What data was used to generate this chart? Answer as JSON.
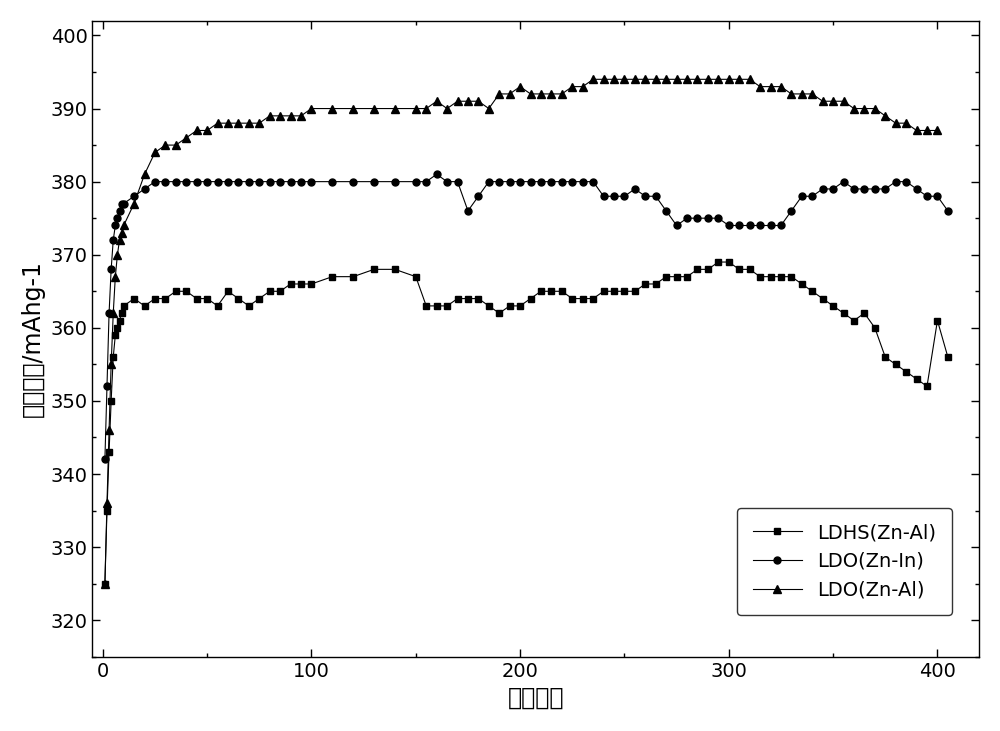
{
  "xlabel": "循环次数",
  "ylabel": "放电容量/mAhg-1",
  "xlim": [
    -5,
    420
  ],
  "ylim": [
    315,
    402
  ],
  "xticks": [
    0,
    100,
    200,
    300,
    400
  ],
  "yticks": [
    320,
    330,
    340,
    350,
    360,
    370,
    380,
    390,
    400
  ],
  "legend_labels": [
    "LDHS(Zn-Al)",
    "LDO(Zn-In)",
    "LDO(Zn-Al)"
  ],
  "series1_x": [
    1,
    2,
    3,
    4,
    5,
    6,
    7,
    8,
    9,
    10,
    15,
    20,
    25,
    30,
    35,
    40,
    45,
    50,
    55,
    60,
    65,
    70,
    75,
    80,
    85,
    90,
    95,
    100,
    110,
    120,
    130,
    140,
    150,
    155,
    160,
    165,
    170,
    175,
    180,
    185,
    190,
    195,
    200,
    205,
    210,
    215,
    220,
    225,
    230,
    235,
    240,
    245,
    250,
    255,
    260,
    265,
    270,
    275,
    280,
    285,
    290,
    295,
    300,
    305,
    310,
    315,
    320,
    325,
    330,
    335,
    340,
    345,
    350,
    355,
    360,
    365,
    370,
    375,
    380,
    385,
    390,
    395,
    400,
    405
  ],
  "series1_y": [
    325,
    335,
    343,
    350,
    356,
    359,
    360,
    361,
    362,
    363,
    364,
    363,
    364,
    364,
    365,
    365,
    364,
    364,
    363,
    365,
    364,
    363,
    364,
    365,
    365,
    366,
    366,
    366,
    367,
    367,
    368,
    368,
    367,
    363,
    363,
    363,
    364,
    364,
    364,
    363,
    362,
    363,
    363,
    364,
    365,
    365,
    365,
    364,
    364,
    364,
    365,
    365,
    365,
    365,
    366,
    366,
    367,
    367,
    367,
    368,
    368,
    369,
    369,
    368,
    368,
    367,
    367,
    367,
    367,
    366,
    365,
    364,
    363,
    362,
    361,
    362,
    360,
    356,
    355,
    354,
    353,
    352,
    361,
    356
  ],
  "series2_x": [
    1,
    2,
    3,
    4,
    5,
    6,
    7,
    8,
    9,
    10,
    15,
    20,
    25,
    30,
    35,
    40,
    45,
    50,
    55,
    60,
    65,
    70,
    75,
    80,
    85,
    90,
    95,
    100,
    110,
    120,
    130,
    140,
    150,
    155,
    160,
    165,
    170,
    175,
    180,
    185,
    190,
    195,
    200,
    205,
    210,
    215,
    220,
    225,
    230,
    235,
    240,
    245,
    250,
    255,
    260,
    265,
    270,
    275,
    280,
    285,
    290,
    295,
    300,
    305,
    310,
    315,
    320,
    325,
    330,
    335,
    340,
    345,
    350,
    355,
    360,
    365,
    370,
    375,
    380,
    385,
    390,
    395,
    400,
    405
  ],
  "series2_y": [
    342,
    352,
    362,
    368,
    372,
    374,
    375,
    376,
    377,
    377,
    378,
    379,
    380,
    380,
    380,
    380,
    380,
    380,
    380,
    380,
    380,
    380,
    380,
    380,
    380,
    380,
    380,
    380,
    380,
    380,
    380,
    380,
    380,
    380,
    381,
    380,
    380,
    376,
    378,
    380,
    380,
    380,
    380,
    380,
    380,
    380,
    380,
    380,
    380,
    380,
    378,
    378,
    378,
    379,
    378,
    378,
    376,
    374,
    375,
    375,
    375,
    375,
    374,
    374,
    374,
    374,
    374,
    374,
    376,
    378,
    378,
    379,
    379,
    380,
    379,
    379,
    379,
    379,
    380,
    380,
    379,
    378,
    378,
    376
  ],
  "series3_x": [
    1,
    2,
    3,
    4,
    5,
    6,
    7,
    8,
    9,
    10,
    15,
    20,
    25,
    30,
    35,
    40,
    45,
    50,
    55,
    60,
    65,
    70,
    75,
    80,
    85,
    90,
    95,
    100,
    110,
    120,
    130,
    140,
    150,
    155,
    160,
    165,
    170,
    175,
    180,
    185,
    190,
    195,
    200,
    205,
    210,
    215,
    220,
    225,
    230,
    235,
    240,
    245,
    250,
    255,
    260,
    265,
    270,
    275,
    280,
    285,
    290,
    295,
    300,
    305,
    310,
    315,
    320,
    325,
    330,
    335,
    340,
    345,
    350,
    355,
    360,
    365,
    370,
    375,
    380,
    385,
    390,
    395,
    400
  ],
  "series3_y": [
    325,
    336,
    346,
    355,
    362,
    367,
    370,
    372,
    373,
    374,
    377,
    381,
    384,
    385,
    385,
    386,
    387,
    387,
    388,
    388,
    388,
    388,
    388,
    389,
    389,
    389,
    389,
    390,
    390,
    390,
    390,
    390,
    390,
    390,
    391,
    390,
    391,
    391,
    391,
    390,
    392,
    392,
    393,
    392,
    392,
    392,
    392,
    393,
    393,
    394,
    394,
    394,
    394,
    394,
    394,
    394,
    394,
    394,
    394,
    394,
    394,
    394,
    394,
    394,
    394,
    393,
    393,
    393,
    392,
    392,
    392,
    391,
    391,
    391,
    390,
    390,
    390,
    389,
    388,
    388,
    387,
    387,
    387
  ],
  "line_color": "#000000",
  "bg_color": "#ffffff",
  "fontsize_label": 17,
  "fontsize_tick": 14,
  "fontsize_legend": 14
}
